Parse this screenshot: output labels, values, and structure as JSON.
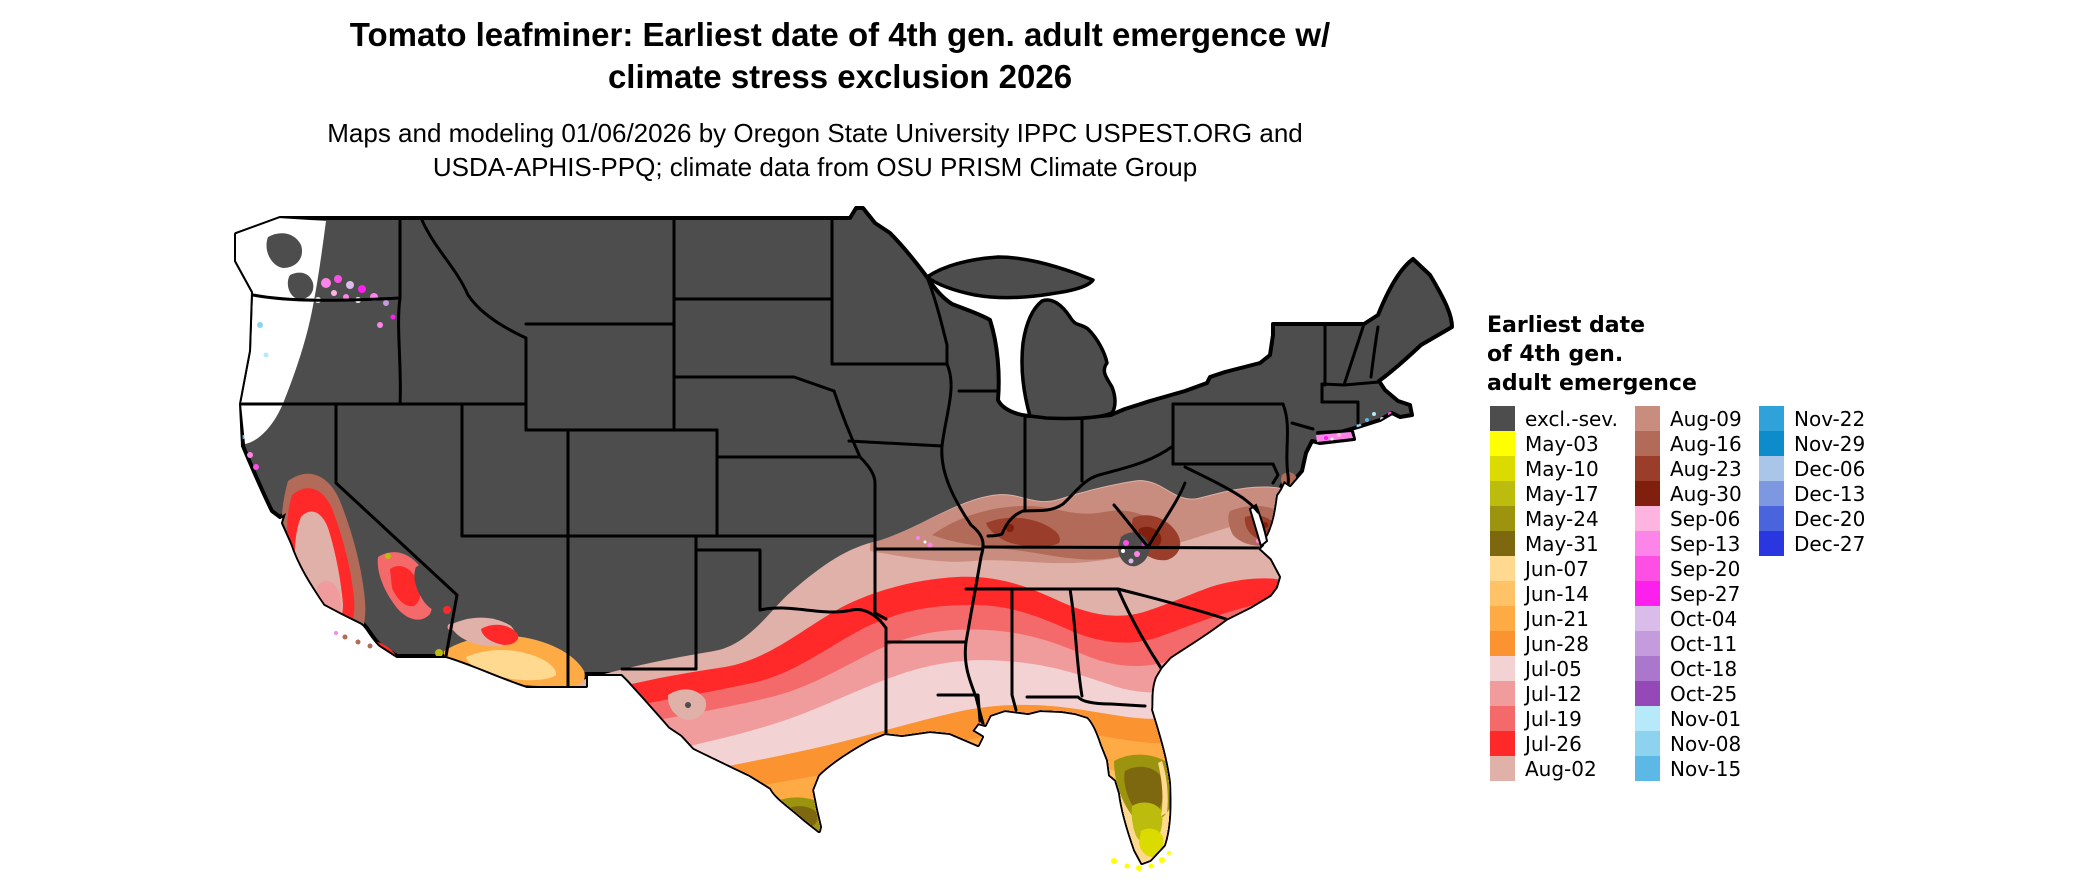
{
  "title": {
    "line1": "Tomato leafminer: Earliest date of 4th gen. adult emergence w/",
    "line2": "climate stress exclusion 2026"
  },
  "subtitle": {
    "line1": "Maps and modeling 01/06/2026 by Oregon State University IPPC USPEST.ORG and",
    "line2": "USDA-APHIS-PPQ; climate data from OSU PRISM Climate Group"
  },
  "legend": {
    "title_lines": [
      "Earliest date",
      "of 4th gen.",
      "adult emergence"
    ],
    "columns": [
      15,
      15,
      6
    ],
    "entries": [
      {
        "label": "excl.-sev.",
        "key": "excl_sev"
      },
      {
        "label": "May-03",
        "key": "may03"
      },
      {
        "label": "May-10",
        "key": "may10"
      },
      {
        "label": "May-17",
        "key": "may17"
      },
      {
        "label": "May-24",
        "key": "may24"
      },
      {
        "label": "May-31",
        "key": "may31"
      },
      {
        "label": "Jun-07",
        "key": "jun07"
      },
      {
        "label": "Jun-14",
        "key": "jun14"
      },
      {
        "label": "Jun-21",
        "key": "jun21"
      },
      {
        "label": "Jun-28",
        "key": "jun28"
      },
      {
        "label": "Jul-05",
        "key": "jul05"
      },
      {
        "label": "Jul-12",
        "key": "jul12"
      },
      {
        "label": "Jul-19",
        "key": "jul19"
      },
      {
        "label": "Jul-26",
        "key": "jul26"
      },
      {
        "label": "Aug-02",
        "key": "aug02"
      },
      {
        "label": "Aug-09",
        "key": "aug09"
      },
      {
        "label": "Aug-16",
        "key": "aug16"
      },
      {
        "label": "Aug-23",
        "key": "aug23"
      },
      {
        "label": "Aug-30",
        "key": "aug30"
      },
      {
        "label": "Sep-06",
        "key": "sep06"
      },
      {
        "label": "Sep-13",
        "key": "sep13"
      },
      {
        "label": "Sep-20",
        "key": "sep20"
      },
      {
        "label": "Sep-27",
        "key": "sep27"
      },
      {
        "label": "Oct-04",
        "key": "oct04"
      },
      {
        "label": "Oct-11",
        "key": "oct11"
      },
      {
        "label": "Oct-18",
        "key": "oct18"
      },
      {
        "label": "Oct-25",
        "key": "oct25"
      },
      {
        "label": "Nov-01",
        "key": "nov01"
      },
      {
        "label": "Nov-08",
        "key": "nov08"
      },
      {
        "label": "Nov-15",
        "key": "nov15"
      },
      {
        "label": "Nov-22",
        "key": "nov22"
      },
      {
        "label": "Nov-29",
        "key": "nov29"
      },
      {
        "label": "Dec-06",
        "key": "dec06"
      },
      {
        "label": "Dec-13",
        "key": "dec13"
      },
      {
        "label": "Dec-20",
        "key": "dec20"
      },
      {
        "label": "Dec-27",
        "key": "dec27"
      }
    ]
  },
  "palette": {
    "excl_sev": "#4d4d4d",
    "may03": "#ffff00",
    "may10": "#dbdb00",
    "may17": "#bcbc0e",
    "may24": "#9c940e",
    "may31": "#7d680f",
    "jun07": "#ffd98f",
    "jun14": "#ffc267",
    "jun21": "#ffab45",
    "jun28": "#fb9330",
    "jul05": "#f3d2d3",
    "jul12": "#f09c9d",
    "jul19": "#f46a6b",
    "jul26": "#ff2929",
    "aug02": "#dfb1a9",
    "aug09": "#c98d80",
    "aug16": "#b16b58",
    "aug23": "#9a3d2b",
    "aug30": "#801f0d",
    "sep06": "#ffb3df",
    "sep13": "#fd84e9",
    "sep20": "#fd4fe4",
    "sep27": "#fd1fee",
    "oct04": "#d9bce9",
    "oct11": "#c49bdd",
    "oct18": "#ab77cc",
    "oct25": "#9549b6",
    "nov01": "#b6e9f9",
    "nov08": "#8dd3ef",
    "nov15": "#5cb8e4",
    "nov22": "#2fa3d9",
    "nov29": "#0d8ccb",
    "dec06": "#a9c6e9",
    "dec13": "#7d97e1",
    "dec20": "#4a64dd",
    "dec27": "#2a36e0",
    "no_data": "#ffffff",
    "state_border": "#000000"
  }
}
